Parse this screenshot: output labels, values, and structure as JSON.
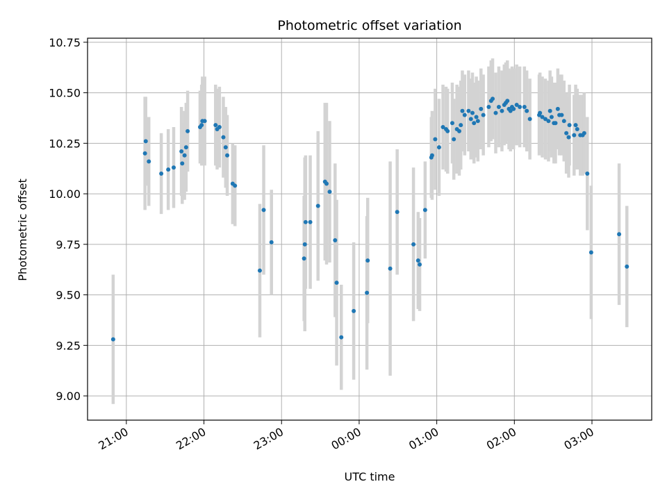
{
  "chart_data": {
    "type": "scatter",
    "title": "Photometric offset variation",
    "xlabel": "UTC time",
    "ylabel": "Photometric offset",
    "x_axis_type": "time",
    "x_tick_labels": [
      "21:00",
      "22:00",
      "23:00",
      "00:00",
      "01:00",
      "02:00",
      "03:00"
    ],
    "x_tick_values_hours": [
      21,
      22,
      23,
      24,
      25,
      26,
      27
    ],
    "xlim_hours": [
      20.5,
      27.77
    ],
    "ylim": [
      8.88,
      10.77
    ],
    "y_ticks": [
      9.0,
      9.25,
      9.5,
      9.75,
      10.0,
      10.25,
      10.5,
      10.75
    ],
    "y_tick_labels": [
      "9.00",
      "9.25",
      "9.50",
      "9.75",
      "10.00",
      "10.25",
      "10.50",
      "10.75"
    ],
    "grid": true,
    "legend": "none",
    "colors": {
      "point": "#1f77b4",
      "errorbar": "#d3d3d3",
      "grid": "#b0b0b0"
    },
    "series": [
      {
        "points": [
          [
            20.83,
            9.28,
            0.32
          ],
          [
            21.24,
            10.2,
            0.28
          ],
          [
            21.25,
            10.26,
            0.22
          ],
          [
            21.29,
            10.16,
            0.22
          ],
          [
            21.45,
            10.1,
            0.2
          ],
          [
            21.54,
            10.12,
            0.2
          ],
          [
            21.61,
            10.13,
            0.2
          ],
          [
            21.71,
            10.21,
            0.22
          ],
          [
            21.72,
            10.15,
            0.2
          ],
          [
            21.75,
            10.19,
            0.22
          ],
          [
            21.77,
            10.23,
            0.22
          ],
          [
            21.79,
            10.31,
            0.2
          ],
          [
            21.95,
            10.33,
            0.18
          ],
          [
            21.97,
            10.34,
            0.2
          ],
          [
            21.98,
            10.36,
            0.22
          ],
          [
            22.01,
            10.36,
            0.22
          ],
          [
            22.15,
            10.34,
            0.2
          ],
          [
            22.17,
            10.32,
            0.2
          ],
          [
            22.2,
            10.33,
            0.2
          ],
          [
            22.25,
            10.28,
            0.2
          ],
          [
            22.28,
            10.23,
            0.2
          ],
          [
            22.3,
            10.19,
            0.2
          ],
          [
            22.37,
            10.05,
            0.2
          ],
          [
            22.4,
            10.04,
            0.2
          ],
          [
            22.72,
            9.62,
            0.33
          ],
          [
            22.77,
            9.92,
            0.32
          ],
          [
            22.87,
            9.76,
            0.26
          ],
          [
            23.29,
            9.68,
            0.31
          ],
          [
            23.3,
            9.75,
            0.43
          ],
          [
            23.31,
            9.86,
            0.33
          ],
          [
            23.37,
            9.86,
            0.33
          ],
          [
            23.47,
            9.94,
            0.37
          ],
          [
            23.56,
            10.06,
            0.39
          ],
          [
            23.58,
            10.05,
            0.4
          ],
          [
            23.62,
            10.01,
            0.35
          ],
          [
            23.69,
            9.77,
            0.38
          ],
          [
            23.71,
            9.56,
            0.41
          ],
          [
            23.77,
            9.29,
            0.26
          ],
          [
            23.93,
            9.42,
            0.34
          ],
          [
            24.1,
            9.51,
            0.38
          ],
          [
            24.11,
            9.67,
            0.31
          ],
          [
            24.4,
            9.63,
            0.53
          ],
          [
            24.49,
            9.91,
            0.31
          ],
          [
            24.7,
            9.75,
            0.38
          ],
          [
            24.76,
            9.67,
            0.24
          ],
          [
            24.78,
            9.65,
            0.23
          ],
          [
            24.85,
            9.92,
            0.24
          ],
          [
            24.93,
            10.18,
            0.2
          ],
          [
            24.94,
            10.19,
            0.22
          ],
          [
            24.98,
            10.27,
            0.25
          ],
          [
            25.03,
            10.23,
            0.24
          ],
          [
            25.08,
            10.33,
            0.21
          ],
          [
            25.12,
            10.32,
            0.21
          ],
          [
            25.14,
            10.31,
            0.21
          ],
          [
            25.2,
            10.35,
            0.2
          ],
          [
            25.22,
            10.27,
            0.2
          ],
          [
            25.26,
            10.32,
            0.22
          ],
          [
            25.29,
            10.31,
            0.22
          ],
          [
            25.31,
            10.34,
            0.22
          ],
          [
            25.33,
            10.41,
            0.2
          ],
          [
            25.36,
            10.39,
            0.2
          ],
          [
            25.41,
            10.41,
            0.2
          ],
          [
            25.44,
            10.37,
            0.2
          ],
          [
            25.46,
            10.4,
            0.2
          ],
          [
            25.48,
            10.35,
            0.2
          ],
          [
            25.51,
            10.38,
            0.2
          ],
          [
            25.53,
            10.36,
            0.2
          ],
          [
            25.57,
            10.42,
            0.2
          ],
          [
            25.6,
            10.39,
            0.2
          ],
          [
            25.67,
            10.43,
            0.2
          ],
          [
            25.7,
            10.46,
            0.2
          ],
          [
            25.72,
            10.47,
            0.2
          ],
          [
            25.76,
            10.4,
            0.2
          ],
          [
            25.8,
            10.43,
            0.2
          ],
          [
            25.84,
            10.41,
            0.2
          ],
          [
            25.87,
            10.44,
            0.2
          ],
          [
            25.89,
            10.45,
            0.2
          ],
          [
            25.91,
            10.46,
            0.2
          ],
          [
            25.93,
            10.42,
            0.2
          ],
          [
            25.95,
            10.41,
            0.2
          ],
          [
            25.97,
            10.43,
            0.2
          ],
          [
            25.99,
            10.42,
            0.2
          ],
          [
            26.03,
            10.44,
            0.2
          ],
          [
            26.07,
            10.43,
            0.2
          ],
          [
            26.13,
            10.43,
            0.2
          ],
          [
            26.16,
            10.41,
            0.2
          ],
          [
            26.2,
            10.37,
            0.2
          ],
          [
            26.32,
            10.39,
            0.2
          ],
          [
            26.33,
            10.4,
            0.2
          ],
          [
            26.36,
            10.38,
            0.2
          ],
          [
            26.4,
            10.37,
            0.2
          ],
          [
            26.44,
            10.36,
            0.2
          ],
          [
            26.46,
            10.41,
            0.2
          ],
          [
            26.48,
            10.38,
            0.2
          ],
          [
            26.51,
            10.35,
            0.2
          ],
          [
            26.53,
            10.35,
            0.2
          ],
          [
            26.56,
            10.42,
            0.2
          ],
          [
            26.58,
            10.39,
            0.2
          ],
          [
            26.61,
            10.39,
            0.2
          ],
          [
            26.64,
            10.36,
            0.2
          ],
          [
            26.67,
            10.3,
            0.2
          ],
          [
            26.7,
            10.28,
            0.2
          ],
          [
            26.71,
            10.34,
            0.2
          ],
          [
            26.77,
            10.29,
            0.2
          ],
          [
            26.79,
            10.34,
            0.2
          ],
          [
            26.81,
            10.32,
            0.2
          ],
          [
            26.85,
            10.29,
            0.2
          ],
          [
            26.88,
            10.29,
            0.2
          ],
          [
            26.9,
            10.3,
            0.2
          ],
          [
            26.94,
            10.1,
            0.28
          ],
          [
            26.99,
            9.71,
            0.33
          ],
          [
            27.35,
            9.8,
            0.35
          ],
          [
            27.45,
            9.64,
            0.3
          ]
        ]
      }
    ]
  }
}
